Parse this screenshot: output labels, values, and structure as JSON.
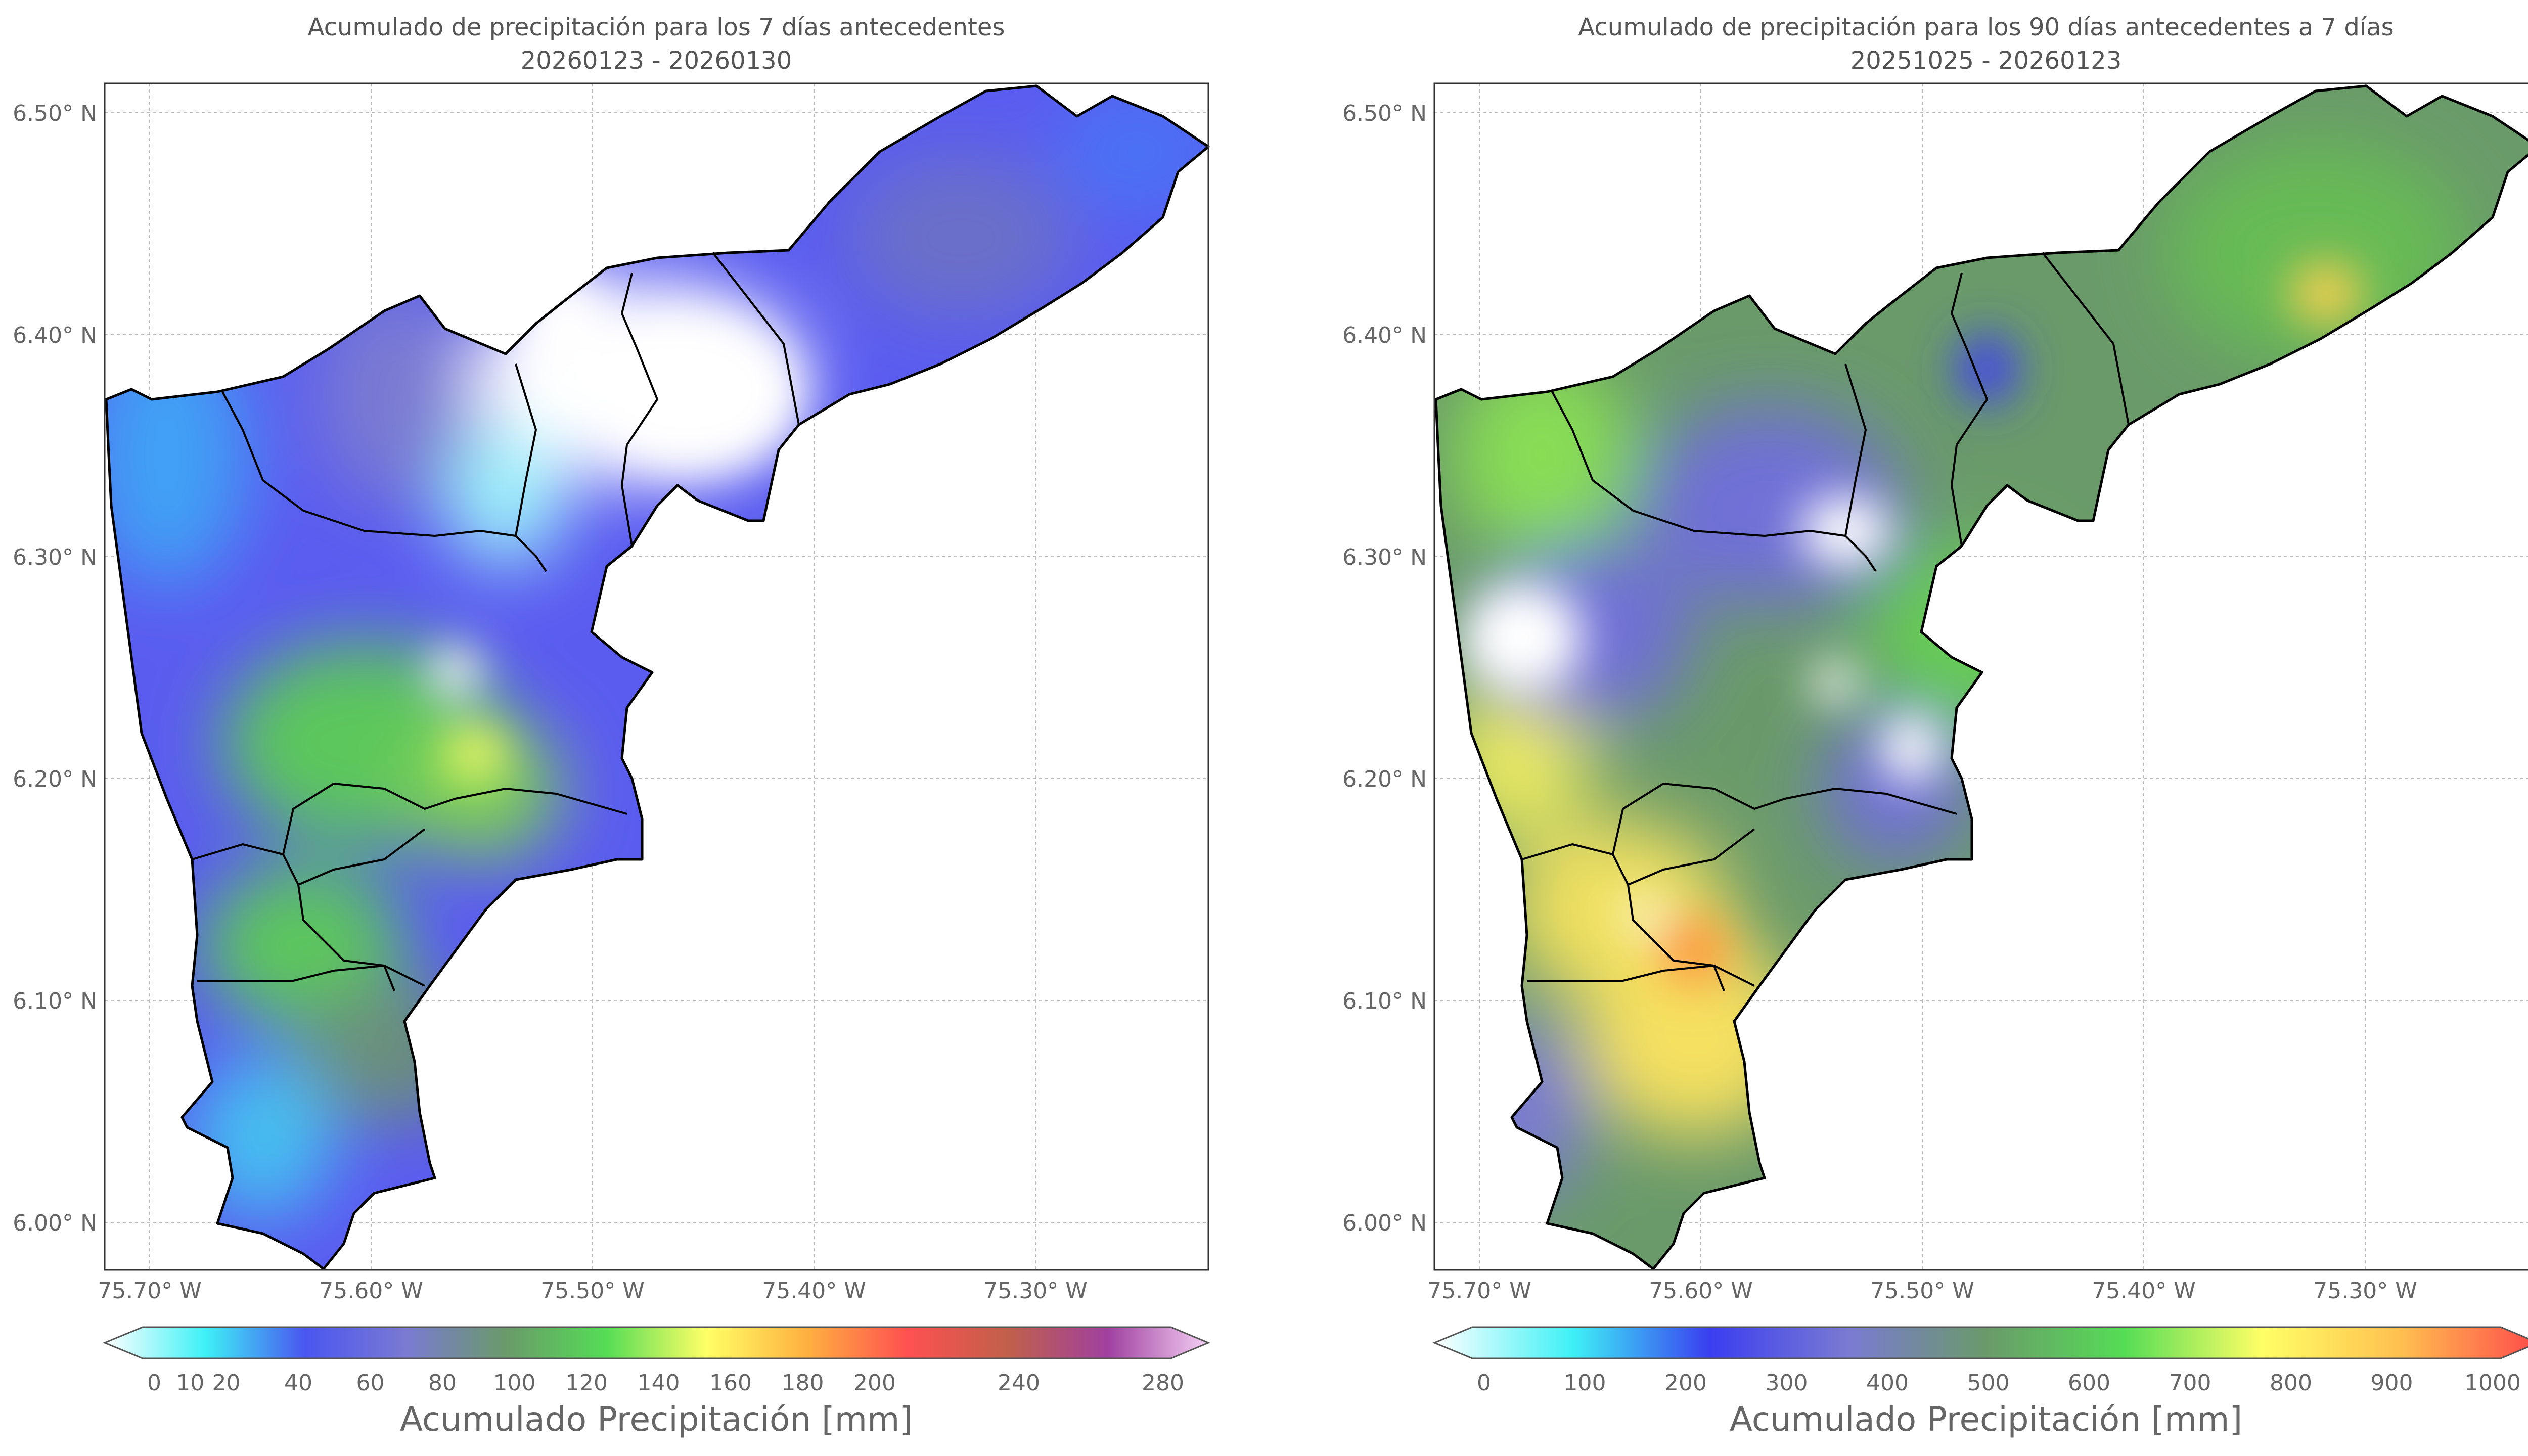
{
  "panels": [
    {
      "title_line1": "Acumulado de precipitación para los 7 días antecedentes",
      "title_line2": "20260123 - 20260130",
      "colorbar_label": "Acumulado Precipitación [mm]",
      "colorbar_ticks": [
        "0",
        "10",
        "20",
        "40",
        "60",
        "80",
        "100",
        "120",
        "140",
        "160",
        "180",
        "200",
        "240",
        "280"
      ],
      "colormap": [
        "#ffffff",
        "#3ef1f6",
        "#4a56f0",
        "#7a7ad2",
        "#6a9a6a",
        "#55dd55",
        "#ffff66",
        "#ffb040",
        "#ff5050",
        "#c0604a",
        "#a040a0",
        "#f4d0f4"
      ]
    },
    {
      "title_line1": "Acumulado de precipitación para los 90 días antecedentes a 7 días",
      "title_line2": "20251025 - 20260123",
      "colorbar_label": "Acumulado Precipitación [mm]",
      "colorbar_ticks": [
        "0",
        "100",
        "200",
        "300",
        "400",
        "500",
        "600",
        "700",
        "800",
        "900",
        "1000"
      ],
      "colormap": [
        "#ffffff",
        "#3ef1f6",
        "#3a3ef0",
        "#7a7ad2",
        "#6a9a6a",
        "#55dd55",
        "#ffff66",
        "#ffc050",
        "#ff4a4a"
      ]
    }
  ],
  "axes": {
    "lat_ticks": [
      "6.50° N",
      "6.40° N",
      "6.30° N",
      "6.20° N",
      "6.10° N",
      "6.00° N"
    ],
    "lon_ticks": [
      "75.70° W",
      "75.60° W",
      "75.50° W",
      "75.40° W",
      "75.30° W"
    ]
  }
}
